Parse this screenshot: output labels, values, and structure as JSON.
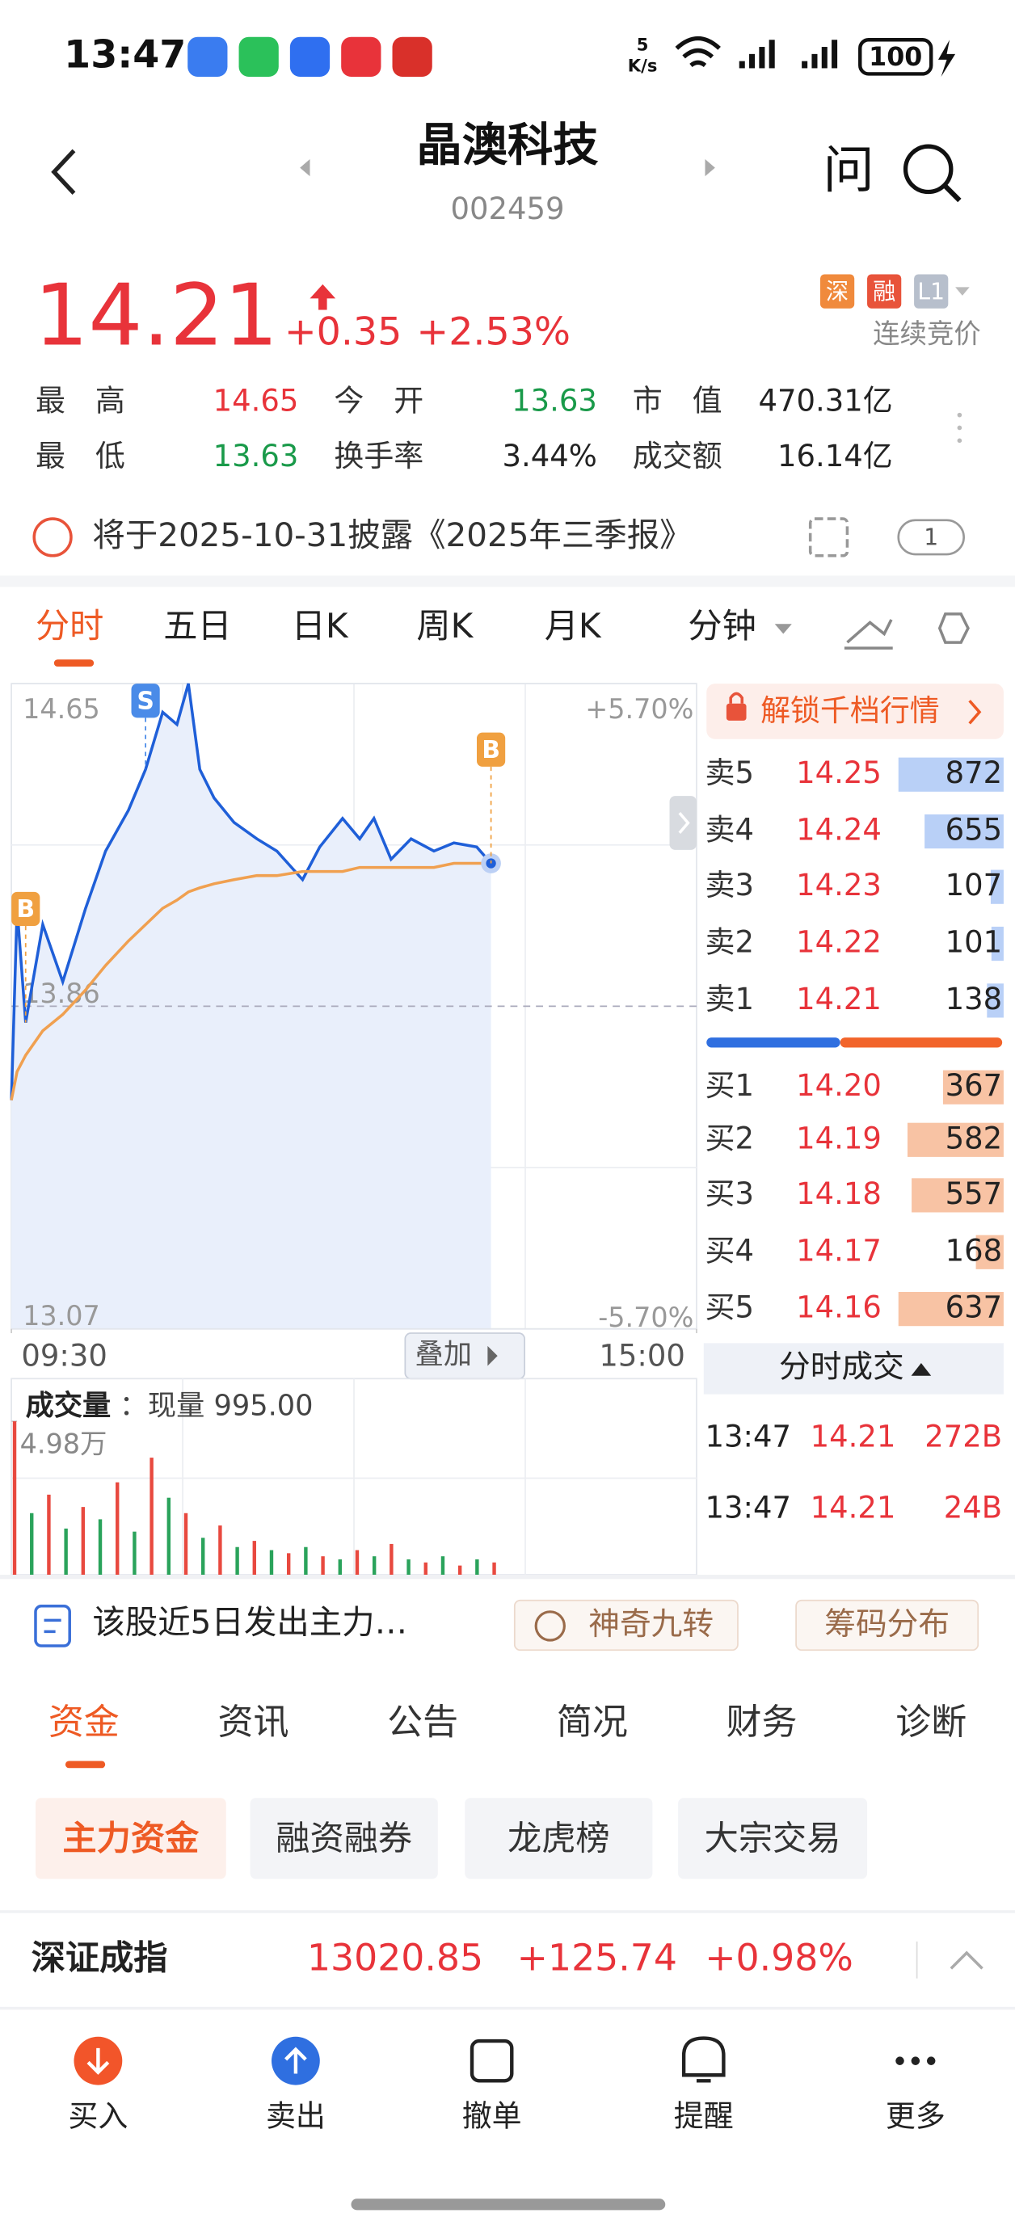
{
  "status_bar": {
    "time": "13:47",
    "net_speed": "5",
    "net_unit": "K/s",
    "battery": "100"
  },
  "header": {
    "title": "晶澳科技",
    "code": "002459",
    "ask": "问"
  },
  "quote": {
    "price": "14.21",
    "change": "+0.35",
    "change_pct": "+2.53%",
    "badges": [
      "深",
      "融",
      "L1"
    ],
    "status": "连续竞价"
  },
  "stats": [
    [
      {
        "label": "最　高",
        "value": "14.65"
      },
      {
        "label": "今　开",
        "value": "13.63"
      },
      {
        "label": "市　值",
        "value": "470.31亿"
      }
    ],
    [
      {
        "label": "最　低",
        "value": "13.63"
      },
      {
        "label": "换手率",
        "value": "3.44%"
      },
      {
        "label": "成交额",
        "value": "16.14亿"
      }
    ]
  ],
  "notice": {
    "text": "将于2025-10-31披露《2025年三季报》",
    "count": "1"
  },
  "chart_tabs": [
    "分时",
    "五日",
    "日K",
    "周K",
    "月K",
    "分钟"
  ],
  "overlay_button": "叠加",
  "chart_data": [
    {
      "type": "line",
      "x": [
        0,
        2,
        5,
        11,
        18,
        26,
        33,
        41,
        47,
        53,
        58,
        62,
        66,
        71,
        78,
        86,
        93,
        102,
        108,
        116,
        122,
        127,
        133,
        140,
        148,
        155,
        163,
        168
      ],
      "series": [
        {
          "color": "#1f5fd8",
          "values": [
            13.63,
            14.1,
            13.82,
            14.06,
            13.92,
            14.1,
            14.24,
            14.34,
            14.44,
            14.58,
            14.55,
            14.65,
            14.44,
            14.37,
            14.31,
            14.27,
            14.24,
            14.17,
            14.25,
            14.32,
            14.27,
            14.32,
            14.22,
            14.27,
            14.24,
            14.26,
            14.25,
            14.21
          ]
        },
        {
          "color": "#f0a050",
          "values": [
            13.63,
            13.7,
            13.74,
            13.8,
            13.84,
            13.9,
            13.96,
            14.02,
            14.06,
            14.1,
            14.12,
            14.14,
            14.15,
            14.16,
            14.17,
            14.18,
            14.18,
            14.19,
            14.19,
            14.19,
            14.2,
            14.2,
            14.2,
            14.2,
            14.2,
            14.21,
            14.21,
            14.21
          ]
        }
      ],
      "xlim": [
        0,
        240
      ],
      "xticks": [
        {
          "value": 0,
          "label": "09:30"
        },
        {
          "value": 240,
          "label": "15:00"
        }
      ],
      "ylim": [
        13.07,
        14.65
      ],
      "yticks": [
        14.65,
        13.86,
        13.07
      ],
      "y2lim": [
        -5.7,
        5.7
      ],
      "y2ticks": [
        {
          "value": 5.7,
          "label": "+5.70%"
        },
        {
          "value": -5.7,
          "label": "-5.70%"
        }
      ],
      "markers": [
        {
          "label": "B",
          "x": 5,
          "color": "#f0a040"
        },
        {
          "label": "S",
          "x": 47,
          "color": "#4a8be8"
        },
        {
          "label": "B",
          "x": 168,
          "color": "#f0a040"
        }
      ]
    },
    {
      "type": "bar",
      "title": "成交量",
      "subtitle": "：现量 995.00",
      "x": [
        0,
        6,
        12,
        18,
        24,
        30,
        36,
        42,
        48,
        54,
        60,
        66,
        72,
        78,
        84,
        90,
        96,
        102,
        108,
        114,
        120,
        126,
        132,
        138,
        144,
        150,
        156,
        162,
        168
      ],
      "series": [
        {
          "color": "#e8493f",
          "values": [
            49800,
            null,
            26000,
            null,
            22000,
            null,
            30000,
            null,
            38000,
            null,
            20000,
            null,
            16000,
            null,
            11000,
            null,
            7000,
            null,
            6000,
            null,
            8000,
            null,
            10000,
            null,
            4000,
            null,
            3000,
            null,
            4000
          ]
        },
        {
          "color": "#2aa35b",
          "values": [
            null,
            20000,
            null,
            15000,
            null,
            18000,
            null,
            14000,
            null,
            25000,
            null,
            12000,
            null,
            9000,
            null,
            8000,
            null,
            9000,
            null,
            5000,
            null,
            6000,
            null,
            5000,
            null,
            6000,
            null,
            5000,
            null
          ]
        }
      ],
      "xlim": [
        0,
        240
      ],
      "ylim": [
        0,
        49800
      ],
      "yticks": [
        {
          "value": 49800,
          "label": "4.98万"
        }
      ]
    }
  ],
  "order_book": {
    "unlock": "解锁千档行情",
    "asks": [
      {
        "label": "卖5",
        "price": "14.25",
        "volume": 872
      },
      {
        "label": "卖4",
        "price": "14.24",
        "volume": 655
      },
      {
        "label": "卖3",
        "price": "14.23",
        "volume": 107
      },
      {
        "label": "卖2",
        "price": "14.22",
        "volume": 101
      },
      {
        "label": "卖1",
        "price": "14.21",
        "volume": 138
      }
    ],
    "bids": [
      {
        "label": "买1",
        "price": "14.20",
        "volume": 367
      },
      {
        "label": "买2",
        "price": "14.19",
        "volume": 582
      },
      {
        "label": "买3",
        "price": "14.18",
        "volume": 557
      },
      {
        "label": "买4",
        "price": "14.17",
        "volume": 168
      },
      {
        "label": "买5",
        "price": "14.16",
        "volume": 637
      }
    ],
    "trades_title": "分时成交",
    "trades": [
      {
        "time": "13:47",
        "price": "14.21",
        "volume": "272B"
      },
      {
        "time": "13:47",
        "price": "14.21",
        "volume": "24B"
      }
    ]
  },
  "info_row": {
    "text": "该股近5日发出主力…",
    "buttons": [
      "神奇九转",
      "筹码分布"
    ]
  },
  "section_tabs": [
    "资金",
    "资讯",
    "公告",
    "简况",
    "财务",
    "诊断"
  ],
  "sub_tabs": [
    "主力资金",
    "融资融券",
    "龙虎榜",
    "大宗交易"
  ],
  "index_bar": {
    "name": "深证成指",
    "value": "13020.85",
    "change": "+125.74",
    "change_pct": "+0.98%"
  },
  "bottom_nav": [
    "买入",
    "卖出",
    "撤单",
    "提醒",
    "更多"
  ]
}
